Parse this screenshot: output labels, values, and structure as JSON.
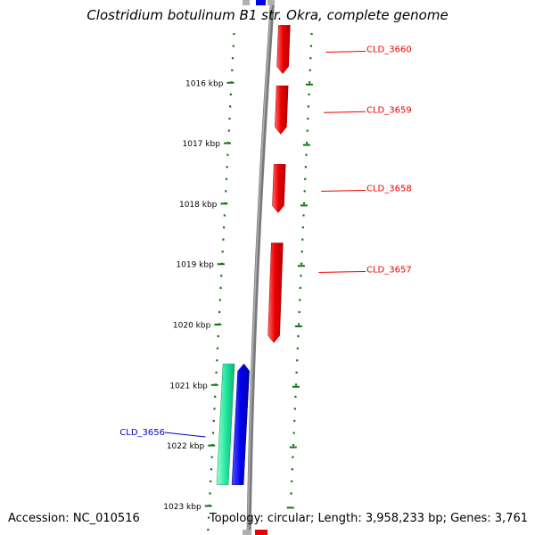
{
  "title": "Clostridium botulinum B1 str. Okra, complete genome",
  "footer": {
    "accession": "Accession: NC_010516",
    "topology": "Topology: circular; Length: 3,958,233 bp; Genes: 3,761"
  },
  "colors": {
    "forward_gene": "#ee0000",
    "reverse_gene_label": "#0000cc",
    "reverse_gene_blue": "#0000ee",
    "reverse_gene_green": "#22e8a0",
    "backbone": "#808080",
    "ticks": "#117711"
  },
  "scale": {
    "unit": "kbp",
    "ticks": [
      {
        "label": "1016 kbp",
        "value": 1016
      },
      {
        "label": "1017 kbp",
        "value": 1017
      },
      {
        "label": "1018 kbp",
        "value": 1018
      },
      {
        "label": "1019 kbp",
        "value": 1019
      },
      {
        "label": "1020 kbp",
        "value": 1020
      },
      {
        "label": "1021 kbp",
        "value": 1021
      },
      {
        "label": "1022 kbp",
        "value": 1022
      },
      {
        "label": "1023 kbp",
        "value": 1023
      }
    ]
  },
  "genes": [
    {
      "name": "CLD_3660",
      "strand": "forward",
      "start": 1015.05,
      "end": 1015.85
    },
    {
      "name": "CLD_3659",
      "strand": "forward",
      "start": 1016.05,
      "end": 1016.85
    },
    {
      "name": "CLD_3658",
      "strand": "forward",
      "start": 1017.35,
      "end": 1018.15
    },
    {
      "name": "CLD_3657",
      "strand": "forward",
      "start": 1018.65,
      "end": 1020.3
    },
    {
      "name": "CLD_3656",
      "strand": "reverse",
      "start": 1020.65,
      "end": 1022.65
    }
  ]
}
